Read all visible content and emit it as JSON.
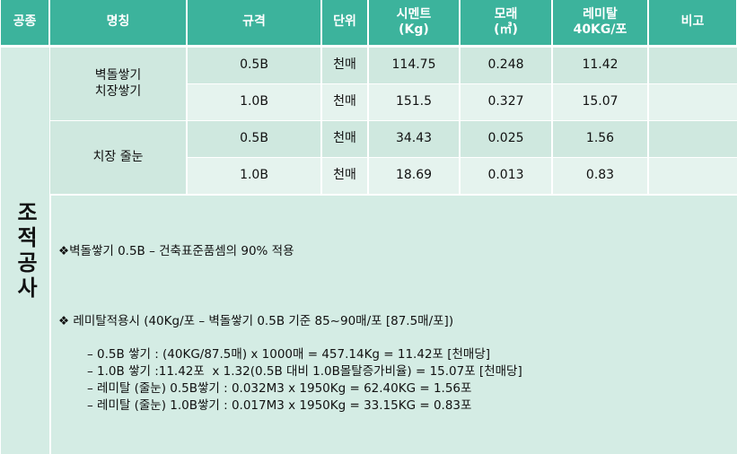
{
  "table": {
    "header": [
      "공종",
      "명칭",
      "규격",
      "단위",
      "시멘트\n(Kg)",
      "모래\n(㎥)",
      "레미탈\n40KG/포",
      "비고"
    ],
    "category": "조적공사",
    "groups": [
      {
        "name": "벽돌쌓기\n치장쌓기",
        "rows": [
          [
            "0.5B",
            "천매",
            "114.75",
            "0.248",
            "11.42"
          ],
          [
            "1.0B",
            "천매",
            "151.5",
            "0.327",
            "15.07"
          ]
        ]
      },
      {
        "name": "치장 줄눈",
        "rows": [
          [
            "0.5B",
            "천매",
            "34.43",
            "0.025",
            "1.56"
          ],
          [
            "1.0B",
            "천매",
            "18.69",
            "0.013",
            "0.83"
          ]
        ]
      }
    ],
    "notes": {
      "note1": "❖벽돌쌓기 0.5B – 건축표준품셈의 90% 적용",
      "note2": "❖ 레미탈적용시 (40Kg/포 – 벽돌쌓기 0.5B 기준 85~90매/포 [87.5매/포])",
      "items": [
        "– 0.5B 쌓기 : (40KG/87.5매) x 1000매 = 457.14Kg = 11.42포 [천매당]",
        "– 1.0B 쌓기 :11.42포  x 1.32(0.5B 대비 1.0B몰탈증가비율) = 15.07포 [천매당]",
        "– 레미탈 (줄눈) 0.5B쌓기 : 0.032M3 x 1950Kg = 62.40KG = 1.56포",
        "– 레미탈 (줄눈) 1.0B쌓기 : 0.017M3 x 1950Kg = 33.15KG = 0.83포"
      ]
    }
  }
}
